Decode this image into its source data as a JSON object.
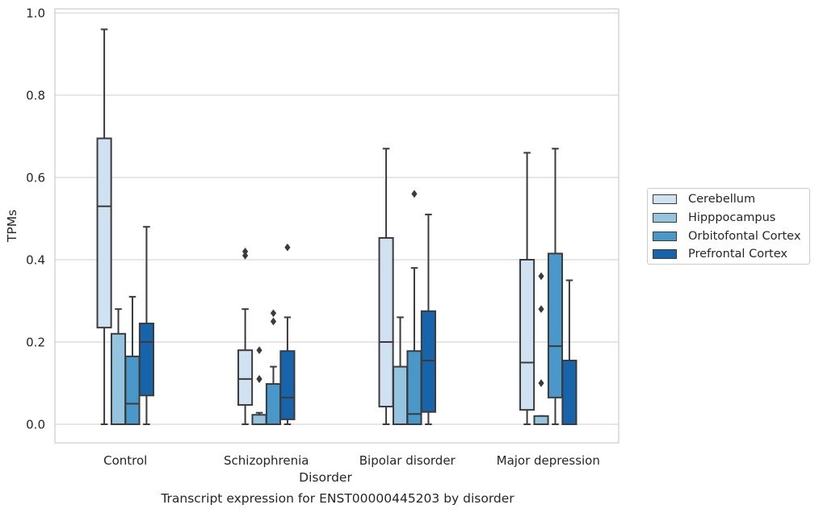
{
  "chart_data": {
    "type": "box",
    "title": "Transcript expression for ENST00000445203 by disorder",
    "xlabel": "Disorder",
    "ylabel": "TPMs",
    "ylim": [
      -0.045,
      1.01
    ],
    "yticks": [
      "0.0",
      "0.2",
      "0.4",
      "0.6",
      "0.8",
      "1.0"
    ],
    "ytick_values": [
      0,
      0.2,
      0.4,
      0.6,
      0.8,
      1.0
    ],
    "grid": true,
    "legend_position": "right",
    "categories": [
      "Control",
      "Schizophrenia",
      "Bipolar disorder",
      "Major depression"
    ],
    "series": [
      {
        "name": "Cerebellum",
        "color": "#d0e1f2",
        "boxes": [
          {
            "whislo": 0.0,
            "q1": 0.235,
            "med": 0.53,
            "q3": 0.695,
            "whishi": 0.96,
            "fliers": []
          },
          {
            "whislo": 0.0,
            "q1": 0.047,
            "med": 0.11,
            "q3": 0.18,
            "whishi": 0.28,
            "fliers": [
              0.41,
              0.42
            ]
          },
          {
            "whislo": 0.0,
            "q1": 0.043,
            "med": 0.2,
            "q3": 0.453,
            "whishi": 0.67,
            "fliers": []
          },
          {
            "whislo": 0.0,
            "q1": 0.035,
            "med": 0.15,
            "q3": 0.4,
            "whishi": 0.66,
            "fliers": []
          }
        ]
      },
      {
        "name": "Hipppocampus",
        "color": "#94c4df",
        "boxes": [
          {
            "whislo": 0.0,
            "q1": 0.0,
            "med": 0.0,
            "q3": 0.22,
            "whishi": 0.28,
            "fliers": []
          },
          {
            "whislo": 0.0,
            "q1": 0.0,
            "med": 0.0,
            "q3": 0.023,
            "whishi": 0.028,
            "fliers": [
              0.11,
              0.11,
              0.18
            ]
          },
          {
            "whislo": 0.0,
            "q1": 0.0,
            "med": 0.0,
            "q3": 0.14,
            "whishi": 0.26,
            "fliers": []
          },
          {
            "whislo": 0.0,
            "q1": 0.0,
            "med": 0.0,
            "q3": 0.02,
            "whishi": 0.02,
            "fliers": [
              0.1,
              0.28,
              0.36
            ]
          }
        ]
      },
      {
        "name": "Orbitofontal Cortex",
        "color": "#4a98c9",
        "boxes": [
          {
            "whislo": 0.0,
            "q1": 0.0,
            "med": 0.05,
            "q3": 0.165,
            "whishi": 0.31,
            "fliers": []
          },
          {
            "whislo": 0.0,
            "q1": 0.0,
            "med": 0.0,
            "q3": 0.098,
            "whishi": 0.14,
            "fliers": [
              0.25,
              0.27
            ]
          },
          {
            "whislo": 0.0,
            "q1": 0.0,
            "med": 0.025,
            "q3": 0.178,
            "whishi": 0.38,
            "fliers": [
              0.56
            ]
          },
          {
            "whislo": 0.0,
            "q1": 0.065,
            "med": 0.19,
            "q3": 0.415,
            "whishi": 0.67,
            "fliers": []
          }
        ]
      },
      {
        "name": "Prefrontal Cortex",
        "color": "#1764ab",
        "boxes": [
          {
            "whislo": 0.0,
            "q1": 0.07,
            "med": 0.2,
            "q3": 0.245,
            "whishi": 0.48,
            "fliers": []
          },
          {
            "whislo": 0.0,
            "q1": 0.012,
            "med": 0.065,
            "q3": 0.178,
            "whishi": 0.26,
            "fliers": [
              0.43
            ]
          },
          {
            "whislo": 0.0,
            "q1": 0.03,
            "med": 0.155,
            "q3": 0.275,
            "whishi": 0.51,
            "fliers": []
          },
          {
            "whislo": 0.0,
            "q1": 0.0,
            "med": 0.0,
            "q3": 0.155,
            "whishi": 0.35,
            "fliers": []
          }
        ]
      }
    ]
  }
}
